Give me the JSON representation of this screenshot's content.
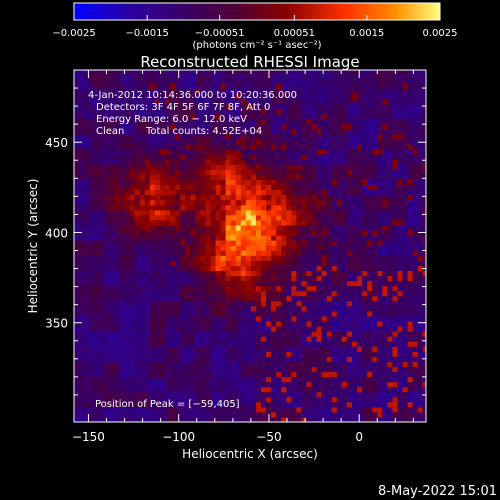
{
  "chart_data": {
    "type": "heatmap",
    "title": "Reconstructed RHESSI Image",
    "xlabel": "Heliocentric X (arcsec)",
    "ylabel": "Heliocentric Y (arcsec)",
    "xlim": [
      -158,
      37
    ],
    "ylim": [
      295,
      490
    ],
    "x_ticks": [
      -150,
      -100,
      -50,
      0
    ],
    "x_tick_labels": [
      "−150",
      "−100",
      "−50",
      "0"
    ],
    "y_ticks": [
      350,
      400,
      450
    ],
    "y_tick_labels": [
      "350",
      "400",
      "450"
    ],
    "colorbar": {
      "range": [
        -0.0025,
        0.0025
      ],
      "ticks": [
        -0.0025,
        -0.0015,
        -0.00051,
        0.00051,
        0.0015,
        0.0025
      ],
      "tick_labels": [
        "−0.0025",
        "−0.0015",
        "−0.00051",
        "0.00051",
        "0.0015",
        "0.0025"
      ],
      "units_label": "(photons cm⁻² s⁻¹ asec⁻²)",
      "colormap": [
        "#0000ff",
        "#2a00a0",
        "#3a0060",
        "#520030",
        "#8a0000",
        "#ff3000",
        "#ff9000",
        "#ffff80"
      ]
    },
    "sources": [
      {
        "x": -59,
        "y": 405,
        "sigma": 19,
        "peak": 0.0025
      },
      {
        "x": -118,
        "y": 418,
        "sigma": 14,
        "peak": 0.0019
      },
      {
        "x": -82,
        "y": 432,
        "sigma": 12,
        "peak": 0.0013
      },
      {
        "x": -72,
        "y": 380,
        "sigma": 14,
        "peak": 0.0013
      }
    ],
    "peak_position": [
      -59,
      405
    ]
  },
  "annotations": {
    "time_range": "4-Jan-2012 10:14:36.000 to 10:20:36.000",
    "detectors": "Detectors: 3F 4F 5F 6F 7F 8F, Att 0",
    "energy_range": "Energy Range: 6.0 − 12.0 keV",
    "method": "Clean",
    "total_counts": "Total counts: 4.52E+04",
    "peak_position_text": "Position of Peak = [−59,405]"
  },
  "footer": {
    "date_stamp": "8-May-2022 15:01"
  }
}
